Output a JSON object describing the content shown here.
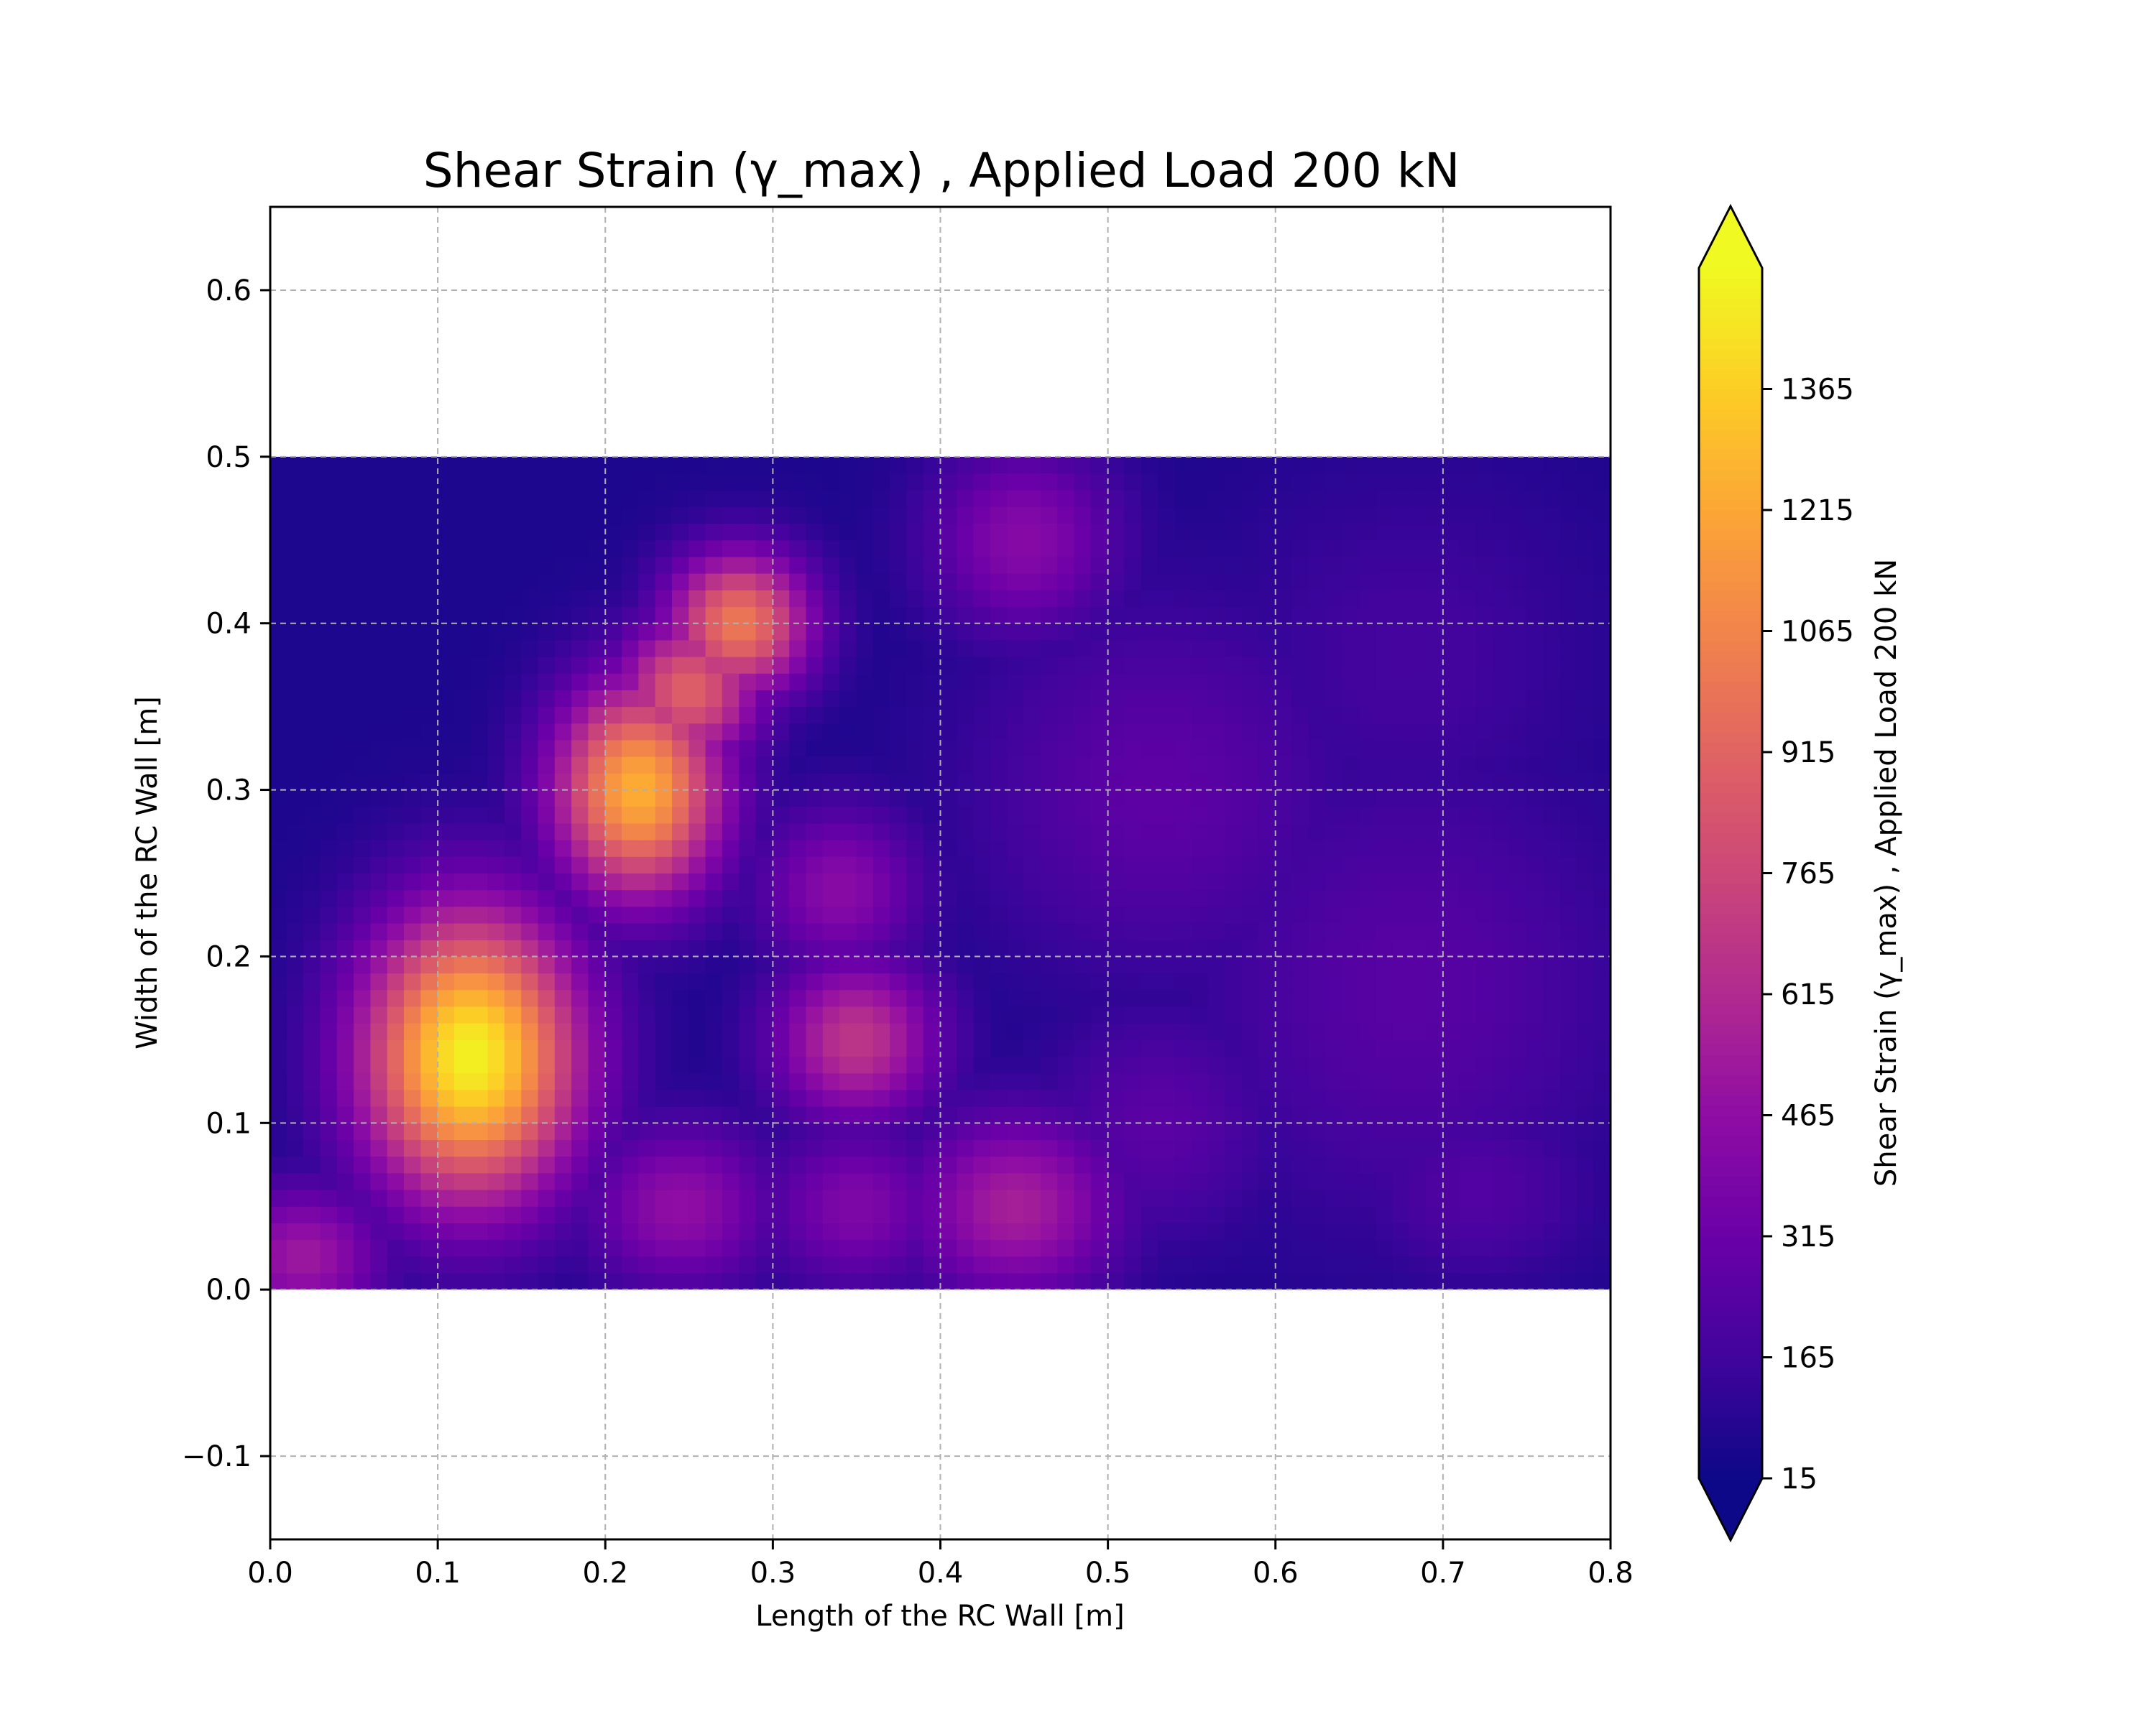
{
  "chart_data": {
    "type": "heatmap",
    "title": "Shear Strain (γ_max) , Applied Load 200 kN",
    "xlabel": "Length of the RC Wall [m]",
    "ylabel": "Width of the RC Wall [m]",
    "xlim": [
      0.0,
      0.8
    ],
    "ylim": [
      -0.15,
      0.65
    ],
    "data_extent": {
      "x": [
        0.0,
        0.8
      ],
      "y": [
        0.0,
        0.5
      ]
    },
    "xticks": [
      "0.0",
      "0.1",
      "0.2",
      "0.3",
      "0.4",
      "0.5",
      "0.6",
      "0.7",
      "0.8"
    ],
    "xtick_values": [
      0.0,
      0.1,
      0.2,
      0.3,
      0.4,
      0.5,
      0.6,
      0.7,
      0.8
    ],
    "yticks": [
      "−0.1",
      "0.0",
      "0.1",
      "0.2",
      "0.3",
      "0.4",
      "0.5",
      "0.6"
    ],
    "ytick_values": [
      -0.1,
      0.0,
      0.1,
      0.2,
      0.3,
      0.4,
      0.5,
      0.6
    ],
    "grid": true,
    "colormap": "plasma",
    "colorbar": {
      "label": "Shear Strain (γ_max) , Applied Load 200 kN",
      "range": [
        15,
        1515
      ],
      "extend": "both",
      "ticks": [
        15,
        165,
        315,
        465,
        615,
        765,
        915,
        1065,
        1215,
        1365
      ],
      "tick_labels": [
        "15",
        "165",
        "315",
        "465",
        "615",
        "765",
        "915",
        "1065",
        "1215",
        "1365"
      ]
    },
    "background_value": 60,
    "hotspots": [
      {
        "x": 0.12,
        "y": 0.14,
        "value": 1490,
        "sx": 0.045,
        "sy": 0.06
      },
      {
        "x": 0.22,
        "y": 0.3,
        "value": 1250,
        "sx": 0.035,
        "sy": 0.045
      },
      {
        "x": 0.28,
        "y": 0.4,
        "value": 1020,
        "sx": 0.03,
        "sy": 0.03
      },
      {
        "x": 0.25,
        "y": 0.36,
        "value": 900,
        "sx": 0.03,
        "sy": 0.03
      },
      {
        "x": 0.35,
        "y": 0.15,
        "value": 680,
        "sx": 0.035,
        "sy": 0.035
      },
      {
        "x": 0.445,
        "y": 0.05,
        "value": 560,
        "sx": 0.045,
        "sy": 0.04
      },
      {
        "x": 0.45,
        "y": 0.45,
        "value": 430,
        "sx": 0.04,
        "sy": 0.04
      },
      {
        "x": 0.245,
        "y": 0.05,
        "value": 470,
        "sx": 0.04,
        "sy": 0.035
      },
      {
        "x": 0.34,
        "y": 0.24,
        "value": 440,
        "sx": 0.035,
        "sy": 0.035
      },
      {
        "x": 0.35,
        "y": 0.05,
        "value": 400,
        "sx": 0.04,
        "sy": 0.035
      },
      {
        "x": 0.02,
        "y": 0.02,
        "value": 520,
        "sx": 0.035,
        "sy": 0.03
      },
      {
        "x": 0.53,
        "y": 0.3,
        "value": 270,
        "sx": 0.08,
        "sy": 0.08
      },
      {
        "x": 0.68,
        "y": 0.18,
        "value": 250,
        "sx": 0.09,
        "sy": 0.1
      },
      {
        "x": 0.72,
        "y": 0.06,
        "value": 230,
        "sx": 0.05,
        "sy": 0.04
      },
      {
        "x": 0.53,
        "y": 0.1,
        "value": 260,
        "sx": 0.05,
        "sy": 0.05
      },
      {
        "x": 0.68,
        "y": 0.38,
        "value": 180,
        "sx": 0.08,
        "sy": 0.08
      }
    ]
  }
}
